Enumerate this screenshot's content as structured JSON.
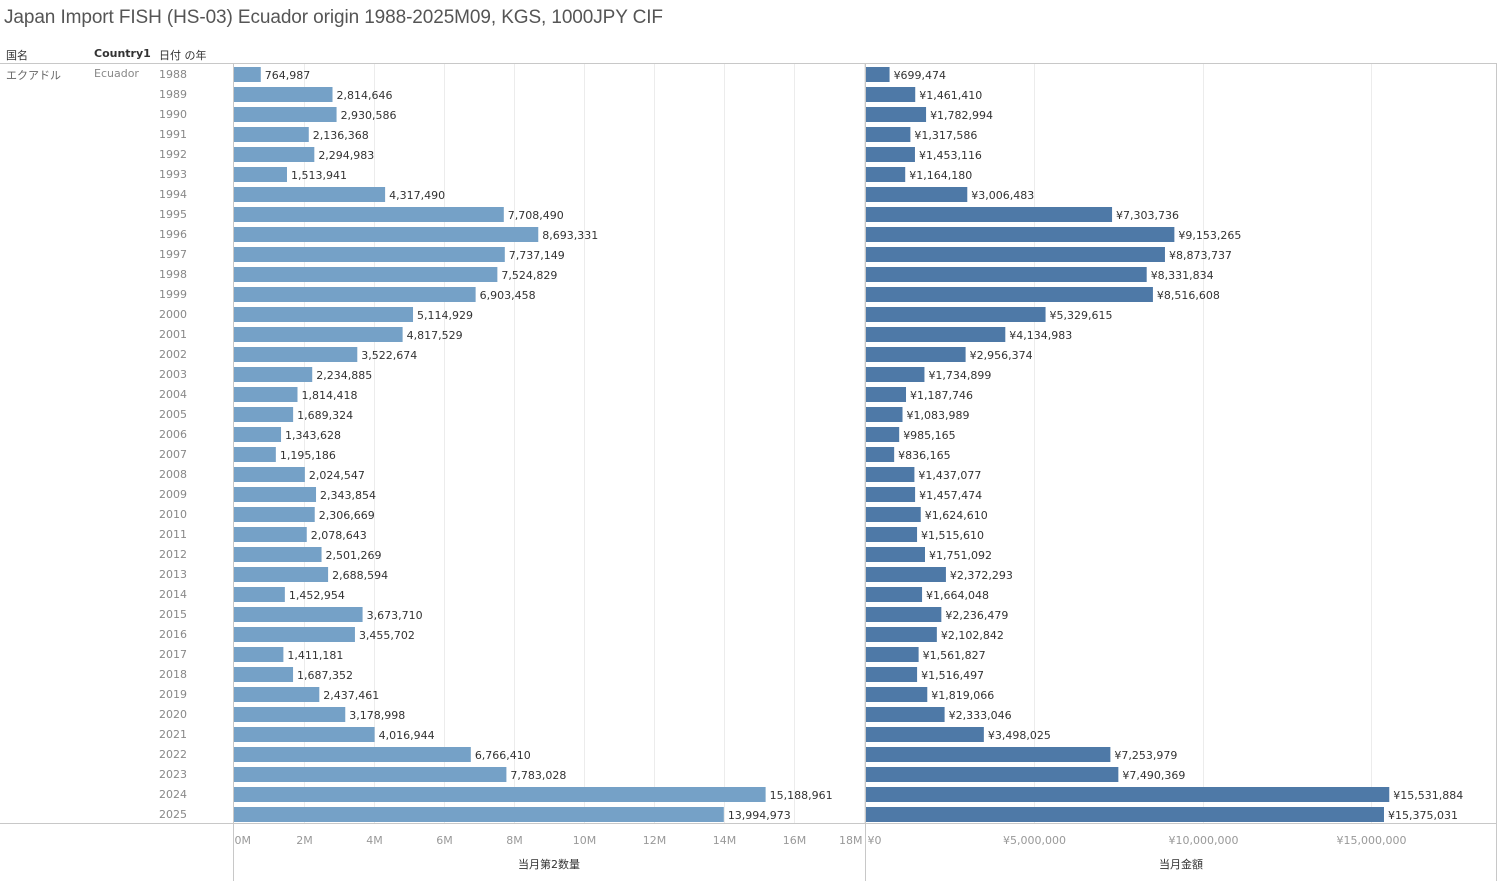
{
  "title": "Japan Import FISH (HS-03) Ecuador origin 1988-2025M09, KGS, 1000JPY CIF",
  "headers": {
    "country_jp": "国名",
    "country1": "Country1",
    "year": "日付 の年"
  },
  "row_header": {
    "country_jp": "エクアドル",
    "country1": "Ecuador"
  },
  "colors": {
    "quantity_bar": "#75a1c7",
    "amount_bar": "#4e79a7",
    "gridline": "#ececec",
    "border": "#c8c8c8"
  },
  "chart_data": [
    {
      "type": "bar",
      "orientation": "horizontal",
      "title": "",
      "xlabel": "当月第2数量",
      "ylabel": "日付 の年",
      "xlim": [
        0,
        18000000
      ],
      "tick_labels": [
        "0M",
        "2M",
        "4M",
        "6M",
        "8M",
        "10M",
        "12M",
        "14M",
        "16M",
        "18M"
      ],
      "tick_values": [
        0,
        2000000,
        4000000,
        6000000,
        8000000,
        10000000,
        12000000,
        14000000,
        16000000,
        18000000
      ],
      "grid": true,
      "categories": [
        "1988",
        "1989",
        "1990",
        "1991",
        "1992",
        "1993",
        "1994",
        "1995",
        "1996",
        "1997",
        "1998",
        "1999",
        "2000",
        "2001",
        "2002",
        "2003",
        "2004",
        "2005",
        "2006",
        "2007",
        "2008",
        "2009",
        "2010",
        "2011",
        "2012",
        "2013",
        "2014",
        "2015",
        "2016",
        "2017",
        "2018",
        "2019",
        "2020",
        "2021",
        "2022",
        "2023",
        "2024",
        "2025"
      ],
      "values": [
        764987,
        2814646,
        2930586,
        2136368,
        2294983,
        1513941,
        4317490,
        7708490,
        8693331,
        7737149,
        7524829,
        6903458,
        5114929,
        4817529,
        3522674,
        2234885,
        1814418,
        1689324,
        1343628,
        1195186,
        2024547,
        2343854,
        2306669,
        2078643,
        2501269,
        2688594,
        1452954,
        3673710,
        3455702,
        1411181,
        1687352,
        2437461,
        3178998,
        4016944,
        6766410,
        7783028,
        15188961,
        13994973
      ],
      "labels": [
        "764,987",
        "2,814,646",
        "2,930,586",
        "2,136,368",
        "2,294,983",
        "1,513,941",
        "4,317,490",
        "7,708,490",
        "8,693,331",
        "7,737,149",
        "7,524,829",
        "6,903,458",
        "5,114,929",
        "4,817,529",
        "3,522,674",
        "2,234,885",
        "1,814,418",
        "1,689,324",
        "1,343,628",
        "1,195,186",
        "2,024,547",
        "2,343,854",
        "2,306,669",
        "2,078,643",
        "2,501,269",
        "2,688,594",
        "1,452,954",
        "3,673,710",
        "3,455,702",
        "1,411,181",
        "1,687,352",
        "2,437,461",
        "3,178,998",
        "4,016,944",
        "6,766,410",
        "7,783,028",
        "15,188,961",
        "13,994,973"
      ]
    },
    {
      "type": "bar",
      "orientation": "horizontal",
      "title": "",
      "xlabel": "当月金額",
      "ylabel": "日付 の年",
      "xlim": [
        0,
        18700000
      ],
      "tick_labels": [
        "¥0",
        "¥5,000,000",
        "¥10,000,000",
        "¥15,000,000"
      ],
      "tick_values": [
        0,
        5000000,
        10000000,
        15000000
      ],
      "grid": true,
      "categories": [
        "1988",
        "1989",
        "1990",
        "1991",
        "1992",
        "1993",
        "1994",
        "1995",
        "1996",
        "1997",
        "1998",
        "1999",
        "2000",
        "2001",
        "2002",
        "2003",
        "2004",
        "2005",
        "2006",
        "2007",
        "2008",
        "2009",
        "2010",
        "2011",
        "2012",
        "2013",
        "2014",
        "2015",
        "2016",
        "2017",
        "2018",
        "2019",
        "2020",
        "2021",
        "2022",
        "2023",
        "2024",
        "2025"
      ],
      "values": [
        699474,
        1461410,
        1782994,
        1317586,
        1453116,
        1164180,
        3006483,
        7303736,
        9153265,
        8873737,
        8331834,
        8516608,
        5329615,
        4134983,
        2956374,
        1734899,
        1187746,
        1083989,
        985165,
        836165,
        1437077,
        1457474,
        1624610,
        1515610,
        1751092,
        2372293,
        1664048,
        2236479,
        2102842,
        1561827,
        1516497,
        1819066,
        2333046,
        3498025,
        7253979,
        7490369,
        15531884,
        15375031
      ],
      "labels": [
        "¥699,474",
        "¥1,461,410",
        "¥1,782,994",
        "¥1,317,586",
        "¥1,453,116",
        "¥1,164,180",
        "¥3,006,483",
        "¥7,303,736",
        "¥9,153,265",
        "¥8,873,737",
        "¥8,331,834",
        "¥8,516,608",
        "¥5,329,615",
        "¥4,134,983",
        "¥2,956,374",
        "¥1,734,899",
        "¥1,187,746",
        "¥1,083,989",
        "¥985,165",
        "¥836,165",
        "¥1,437,077",
        "¥1,457,474",
        "¥1,624,610",
        "¥1,515,610",
        "¥1,751,092",
        "¥2,372,293",
        "¥1,664,048",
        "¥2,236,479",
        "¥2,102,842",
        "¥1,561,827",
        "¥1,516,497",
        "¥1,819,066",
        "¥2,333,046",
        "¥3,498,025",
        "¥7,253,979",
        "¥7,490,369",
        "¥15,531,884",
        "¥15,375,031"
      ]
    }
  ]
}
